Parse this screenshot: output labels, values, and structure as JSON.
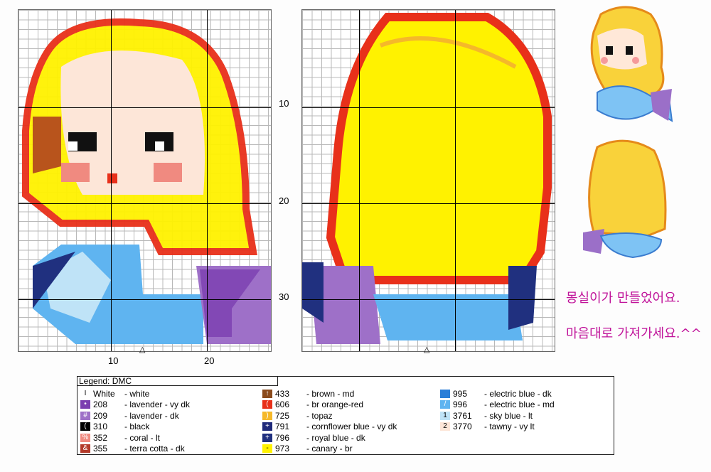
{
  "row_labels": [
    "10",
    "20",
    "30"
  ],
  "col_labels": [
    "10",
    "20"
  ],
  "caption": {
    "line1": "몽실이가 만들었어요.",
    "line2": "마음대로 가져가세요.^^"
  },
  "legend": {
    "title": "Legend: DMC",
    "columns": [
      [
        {
          "symbol": "I",
          "code": "White",
          "name": "- white",
          "color": "#ffffff"
        },
        {
          "symbol": "•",
          "code": "208",
          "name": "- lavender - vy dk",
          "color": "#7b3fb0"
        },
        {
          "symbol": "#",
          "code": "209",
          "name": "- lavender - dk",
          "color": "#9e70c8"
        },
        {
          "symbol": "(",
          "code": "310",
          "name": "- black",
          "color": "#000000"
        },
        {
          "symbol": "%",
          "code": "352",
          "name": "- coral - lt",
          "color": "#f08a80"
        },
        {
          "symbol": "&",
          "code": "355",
          "name": "- terra cotta - dk",
          "color": "#b33a2a"
        }
      ],
      [
        {
          "symbol": "↑",
          "code": "433",
          "name": "- brown - md",
          "color": "#8a4a1c"
        },
        {
          "symbol": "(",
          "code": "606",
          "name": "- br orange-red",
          "color": "#e8301a"
        },
        {
          "symbol": ")",
          "code": "725",
          "name": "- topaz",
          "color": "#f5b82a"
        },
        {
          "symbol": "+",
          "code": "791",
          "name": "- cornflower blue - vy dk",
          "color": "#1f2a7a"
        },
        {
          "symbol": "+",
          "code": "796",
          "name": "- royal blue - dk",
          "color": "#20307f"
        },
        {
          "symbol": "-",
          "code": "973",
          "name": "- canary - br",
          "color": "#fff200"
        }
      ],
      [
        {
          "symbol": "",
          "code": "995",
          "name": "- electric blue - dk",
          "color": "#2b7fd8"
        },
        {
          "symbol": "/",
          "code": "996",
          "name": "- electric blue - md",
          "color": "#5fb4f0"
        },
        {
          "symbol": "1",
          "code": "3761",
          "name": "- sky blue - lt",
          "color": "#bfe3f7"
        },
        {
          "symbol": "2",
          "code": "3770",
          "name": "- tawny - vy lt",
          "color": "#fde6d8"
        }
      ]
    ]
  }
}
